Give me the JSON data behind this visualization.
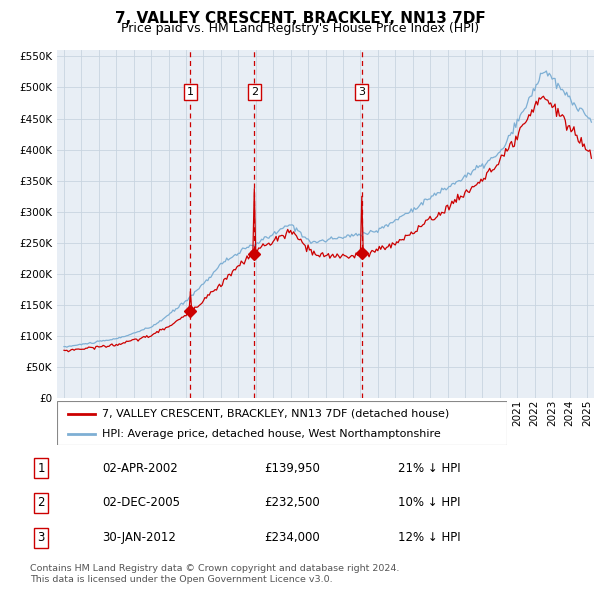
{
  "title": "7, VALLEY CRESCENT, BRACKLEY, NN13 7DF",
  "subtitle": "Price paid vs. HM Land Registry's House Price Index (HPI)",
  "legend_label_red": "7, VALLEY CRESCENT, BRACKLEY, NN13 7DF (detached house)",
  "legend_label_blue": "HPI: Average price, detached house, West Northamptonshire",
  "sale_labels": [
    {
      "num": 1,
      "date": "02-APR-2002",
      "price": "£139,950",
      "pct": "21%",
      "dir": "↓"
    },
    {
      "num": 2,
      "date": "02-DEC-2005",
      "price": "£232,500",
      "pct": "10%",
      "dir": "↓"
    },
    {
      "num": 3,
      "date": "30-JAN-2012",
      "price": "£234,000",
      "pct": "12%",
      "dir": "↓"
    }
  ],
  "sale_prices": [
    139950,
    232500,
    234000
  ],
  "sale_dates_decimal": [
    2002.25,
    2005.92,
    2012.08
  ],
  "footnote1": "Contains HM Land Registry data © Crown copyright and database right 2024.",
  "footnote2": "This data is licensed under the Open Government Licence v3.0.",
  "ylim": [
    0,
    560000
  ],
  "xlim_start": 1994.6,
  "xlim_end": 2025.4,
  "background_color": "#e8eef5",
  "grid_color": "#c8d4e0",
  "red_line_color": "#cc0000",
  "blue_line_color": "#7eafd4",
  "vline_color": "#cc0000",
  "title_fontsize": 11,
  "subtitle_fontsize": 9,
  "tick_fontsize": 7.5,
  "axis_label_fontsize": 8.5,
  "legend_fontsize": 8,
  "table_fontsize": 8.5,
  "footnote_fontsize": 6.8
}
